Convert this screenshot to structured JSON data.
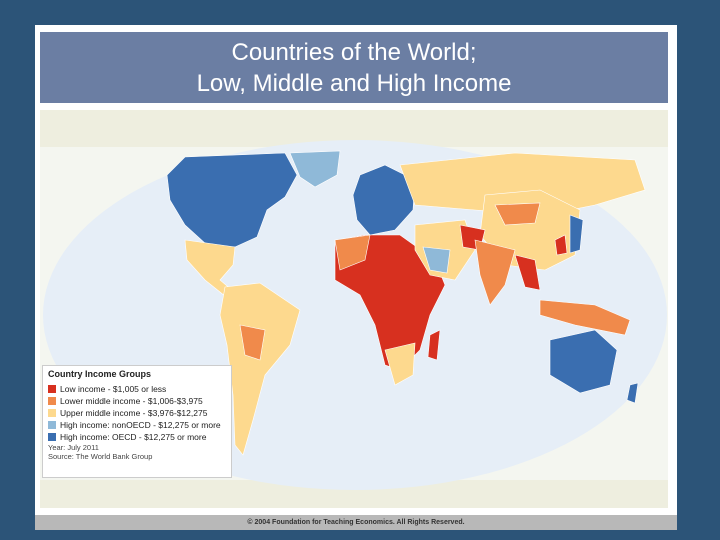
{
  "header": {
    "title_lines": [
      "Countries of the World;",
      "Low, Middle and High Income"
    ]
  },
  "legend": {
    "title": "Country Income Groups",
    "items": [
      {
        "label": "Low income - $1,005 or less",
        "color": "#d7301f"
      },
      {
        "label": "Lower middle income - $1,006-$3,975",
        "color": "#f08a4b"
      },
      {
        "label": "Upper middle income - $3,976-$12,275",
        "color": "#fdd98e"
      },
      {
        "label": "High income: nonOECD - $12,275 or more",
        "color": "#8fb9d8"
      },
      {
        "label": "High income: OECD - $12,275 or more",
        "color": "#3a6eb0"
      }
    ],
    "year": "Year: July 2011",
    "source": "Source: The World Bank Group"
  },
  "footer": "© 2004 Foundation for Teaching Economics. All Rights Reserved."
}
